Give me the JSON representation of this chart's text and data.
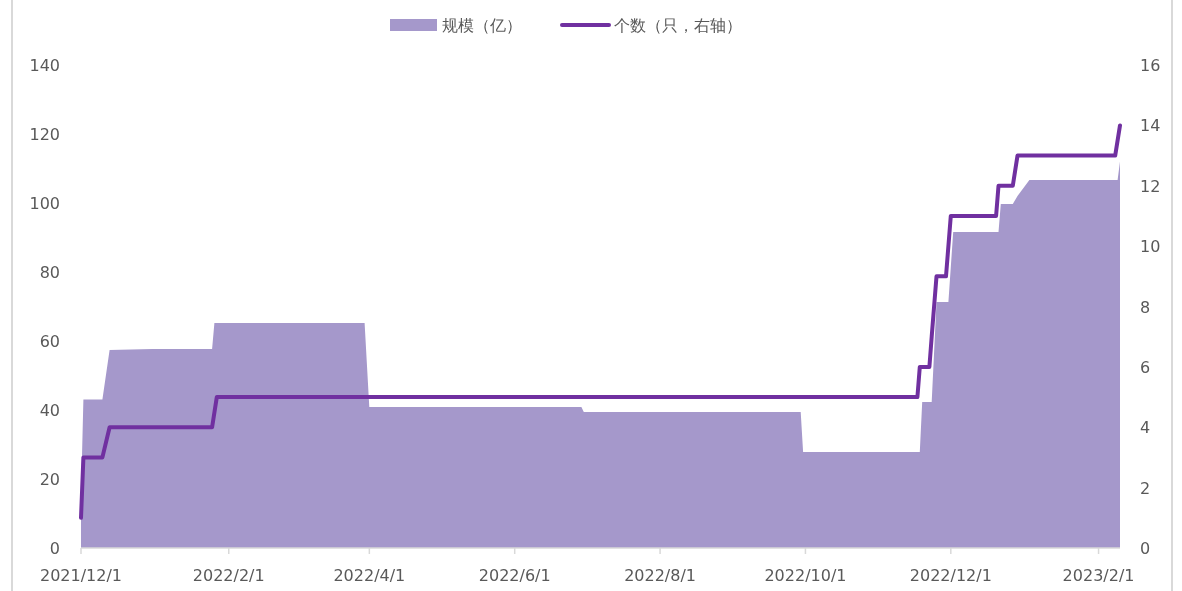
{
  "chart_data": {
    "type": "area",
    "x": [
      "2021-12-01",
      "2021-12-02",
      "2021-12-10",
      "2021-12-13",
      "2021-12-31",
      "2022-01-25",
      "2022-01-26",
      "2022-03-30",
      "2022-04-01",
      "2022-06-29",
      "2022-06-30",
      "2022-09-29",
      "2022-09-30",
      "2022-11-18",
      "2022-11-19",
      "2022-11-23",
      "2022-11-25",
      "2022-11-30",
      "2022-12-02",
      "2022-12-21",
      "2022-12-22",
      "2022-12-27",
      "2022-12-29",
      "2023-01-03",
      "2023-02-09",
      "2023-02-10"
    ],
    "series": [
      {
        "name": "规模（亿）",
        "color": "#a598cb",
        "values": [
          15,
          43,
          43,
          57.4,
          57.7,
          57.7,
          65.2,
          65.2,
          40.9,
          40.9,
          39.4,
          39.4,
          27.8,
          27.8,
          42.3,
          42.3,
          71.3,
          71.3,
          91.6,
          91.6,
          99.7,
          99.7,
          102,
          106.7,
          106.7,
          112
        ]
      },
      {
        "name": "个数（只，右轴）",
        "type": "line",
        "axis": "y2",
        "color": "#7030a0",
        "x": [
          "2021-12-01",
          "2021-12-02",
          "2021-12-10",
          "2021-12-13",
          "2022-01-25",
          "2022-01-27",
          "2022-11-17",
          "2022-11-18",
          "2022-11-22",
          "2022-11-23",
          "2022-11-25",
          "2022-11-29",
          "2022-12-01",
          "2022-12-20",
          "2022-12-21",
          "2022-12-27",
          "2022-12-29",
          "2023-02-08",
          "2023-02-10"
        ],
        "values": [
          1,
          3,
          3,
          4,
          4,
          5,
          5,
          6,
          6,
          7,
          9,
          9,
          11,
          11,
          12,
          12,
          13,
          13,
          14
        ]
      }
    ],
    "xlim": [
      "2021-12-01",
      "2023-02-10"
    ],
    "xticks": [
      {
        "value": "2021-12-01",
        "label": "2021/12/1"
      },
      {
        "value": "2022-02-01",
        "label": "2022/2/1"
      },
      {
        "value": "2022-04-01",
        "label": "2022/4/1"
      },
      {
        "value": "2022-06-01",
        "label": "2022/6/1"
      },
      {
        "value": "2022-08-01",
        "label": "2022/8/1"
      },
      {
        "value": "2022-10-01",
        "label": "2022/10/1"
      },
      {
        "value": "2022-12-01",
        "label": "2022/12/1"
      },
      {
        "value": "2023-02-01",
        "label": "2023/2/1"
      }
    ],
    "ylim": [
      0,
      140
    ],
    "yticks": [
      0,
      20,
      40,
      60,
      80,
      100,
      120,
      140
    ],
    "y2lim": [
      0,
      16
    ],
    "y2ticks": [
      0,
      2,
      4,
      6,
      8,
      10,
      12,
      14,
      16
    ],
    "grid": false,
    "legend": "top"
  }
}
